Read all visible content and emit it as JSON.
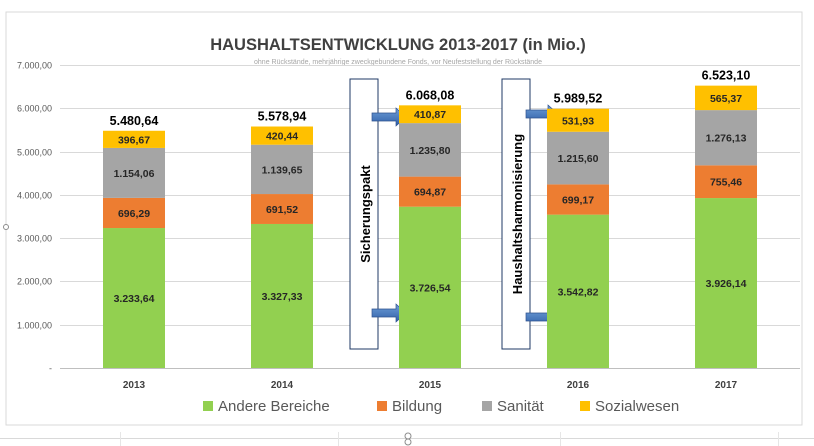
{
  "chart_data": {
    "type": "bar",
    "stacked": true,
    "title": "HAUSHALTSENTWICKLUNG 2013-2017 (in Mio.)",
    "subtitle": "ohne Rückstände, mehrjährige zweckgebundene Fonds, vor Neufeststellung der Rückstände",
    "categories": [
      "2013",
      "2014",
      "2015",
      "2016",
      "2017"
    ],
    "ylim": [
      0,
      7000
    ],
    "yticks": [
      {
        "value": 0,
        "label": "-"
      },
      {
        "value": 1000,
        "label": "1.000,00"
      },
      {
        "value": 2000,
        "label": "2.000,00"
      },
      {
        "value": 3000,
        "label": "3.000,00"
      },
      {
        "value": 4000,
        "label": "4.000,00"
      },
      {
        "value": 5000,
        "label": "5.000,00"
      },
      {
        "value": 6000,
        "label": "6.000,00"
      },
      {
        "value": 7000,
        "label": "7.000,00"
      }
    ],
    "grid": true,
    "legend_position": "bottom",
    "series": [
      {
        "name": "Andere Bereiche",
        "color": "#92d050",
        "values": [
          3233.64,
          3327.33,
          3726.54,
          3542.82,
          3926.14
        ],
        "labels": [
          "3.233,64",
          "3.327,33",
          "3.726,54",
          "3.542,82",
          "3.926,14"
        ]
      },
      {
        "name": "Bildung",
        "color": "#ed7d31",
        "values": [
          696.29,
          691.52,
          694.87,
          699.17,
          755.46
        ],
        "labels": [
          "696,29",
          "691,52",
          "694,87",
          "699,17",
          "755,46"
        ]
      },
      {
        "name": "Sanität",
        "color": "#a5a5a5",
        "values": [
          1154.06,
          1139.65,
          1235.8,
          1215.6,
          1276.13
        ],
        "labels": [
          "1.154,06",
          "1.139,65",
          "1.235,80",
          "1.215,60",
          "1.276,13"
        ]
      },
      {
        "name": "Sozialwesen",
        "color": "#ffc000",
        "values": [
          396.67,
          420.44,
          410.87,
          531.93,
          565.37
        ],
        "labels": [
          "396,67",
          "420,44",
          "410,87",
          "531,93",
          "565,37"
        ]
      }
    ],
    "totals": [
      "5.480,64",
      "5.578,94",
      "6.068,08",
      "5.989,52",
      "6.523,10"
    ],
    "annotations": [
      {
        "text": "Sicherungspakt",
        "between": [
          "2014",
          "2015"
        ]
      },
      {
        "text": "Haushaltsharmonisierung",
        "between": [
          "2015",
          "2016"
        ]
      }
    ]
  }
}
